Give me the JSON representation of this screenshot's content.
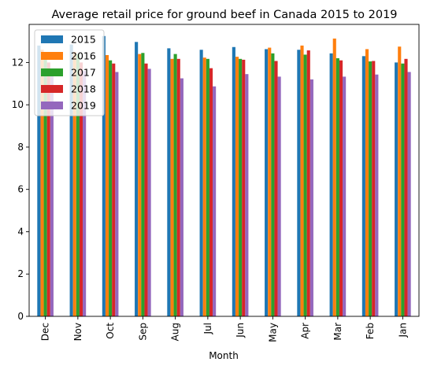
{
  "chart_data": {
    "type": "bar",
    "title": "Average retail price for ground beef in Canada 2015 to 2019",
    "xlabel": "Month",
    "ylabel": "",
    "categories": [
      "Dec",
      "Nov",
      "Oct",
      "Sep",
      "Aug",
      "Jul",
      "Jun",
      "May",
      "Apr",
      "Mar",
      "Feb",
      "Jan"
    ],
    "ylim": [
      0,
      13.8
    ],
    "yticks": [
      0,
      2,
      4,
      6,
      8,
      10,
      12
    ],
    "legend": "top-left",
    "grid": false,
    "series": [
      {
        "name": "2015",
        "color": "#1f77b4",
        "values": [
          12.8,
          12.85,
          13.25,
          12.97,
          12.67,
          12.6,
          12.73,
          12.63,
          12.6,
          12.43,
          12.3,
          12.0
        ]
      },
      {
        "name": "2016",
        "color": "#ff7f0e",
        "values": [
          12.6,
          12.5,
          12.35,
          12.4,
          12.17,
          12.23,
          12.27,
          12.7,
          12.8,
          13.13,
          12.63,
          12.75
        ]
      },
      {
        "name": "2017",
        "color": "#2ca02c",
        "values": [
          12.45,
          12.4,
          12.1,
          12.45,
          12.4,
          12.17,
          12.17,
          12.43,
          12.37,
          12.2,
          12.05,
          11.95
        ]
      },
      {
        "name": "2018",
        "color": "#d62728",
        "values": [
          12.0,
          12.0,
          11.95,
          11.95,
          12.17,
          11.73,
          12.13,
          12.07,
          12.57,
          12.1,
          12.07,
          12.17
        ]
      },
      {
        "name": "2019",
        "color": "#9467bd",
        "values": [
          11.6,
          11.6,
          11.55,
          11.7,
          11.25,
          10.87,
          11.45,
          11.33,
          11.2,
          11.33,
          11.43,
          11.55
        ]
      }
    ]
  }
}
